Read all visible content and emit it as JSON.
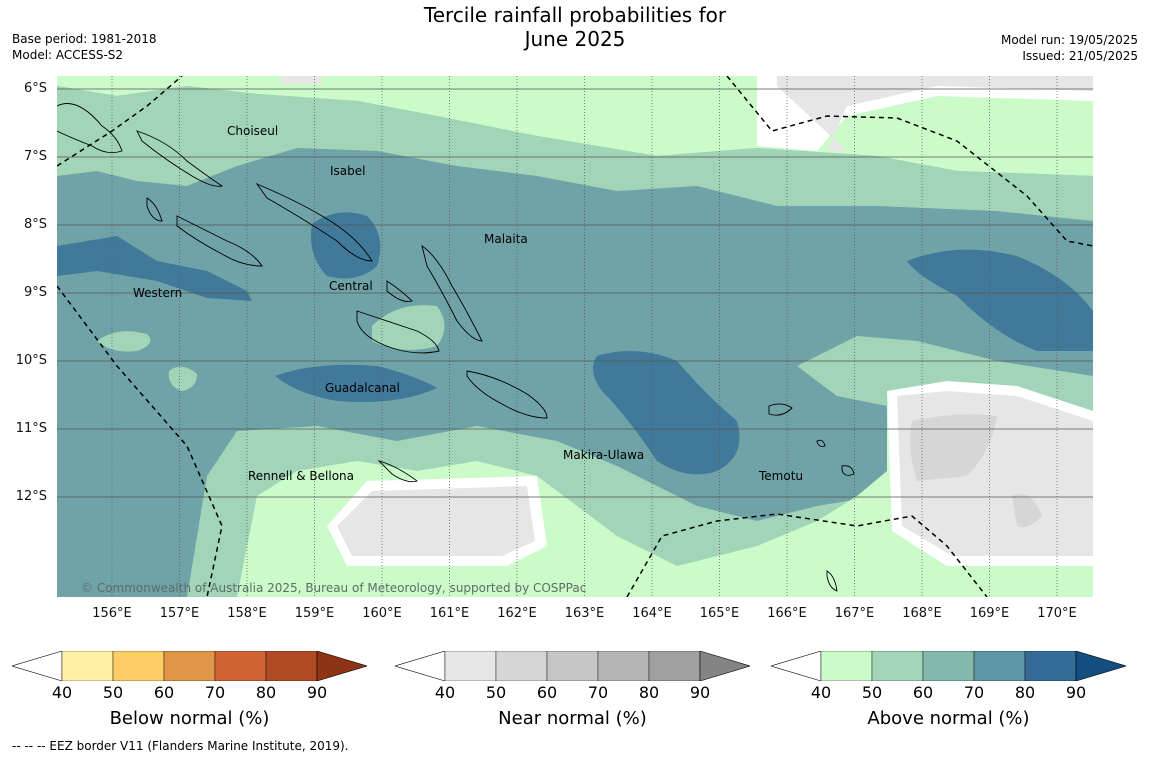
{
  "title_line1": "Tercile rainfall probabilities for",
  "title_line2": "June 2025",
  "base_period": "Base period: 1981-2018",
  "model": "Model: ACCESS-S2",
  "model_run": "Model run: 19/05/2025",
  "issued": "Issued: 21/05/2025",
  "copyright": "© Commonwealth of Australia 2025, Bureau of Meteorology, supported by COSPPac",
  "lat_ticks": [
    "6°S",
    "7°S",
    "8°S",
    "9°S",
    "10°S",
    "11°S",
    "12°S"
  ],
  "lon_ticks": [
    "156°E",
    "157°E",
    "158°E",
    "159°E",
    "160°E",
    "161°E",
    "162°E",
    "163°E",
    "164°E",
    "165°E",
    "166°E",
    "167°E",
    "168°E",
    "169°E",
    "170°E"
  ],
  "provinces": [
    "Choiseul",
    "Isabel",
    "Malaita",
    "Western",
    "Central",
    "Guadalcanal",
    "Makira-Ulawa",
    "Rennell & Bellona",
    "Temotu"
  ],
  "colorbars": [
    {
      "label": "Below normal (%)",
      "ticks": [
        "40",
        "50",
        "60",
        "70",
        "80",
        "90"
      ],
      "colors": [
        "#fff0a3",
        "#ffcd66",
        "#e09548",
        "#cf6434",
        "#b04a25",
        "#8e3414"
      ]
    },
    {
      "label": "Near normal (%)",
      "ticks": [
        "40",
        "50",
        "60",
        "70",
        "80",
        "90"
      ],
      "colors": [
        "#e6e6e6",
        "#d6d6d6",
        "#c6c6c6",
        "#b4b4b4",
        "#a0a0a0",
        "#848484"
      ]
    },
    {
      "label": "Above normal (%)",
      "ticks": [
        "40",
        "50",
        "60",
        "70",
        "80",
        "90"
      ],
      "colors": [
        "#cbfbc9",
        "#a2d5b8",
        "#83b8ad",
        "#5e95a4",
        "#356b97",
        "#124f80"
      ]
    }
  ],
  "footer": "--  --  -- EEZ border V11 (Flanders Marine Institute, 2019)."
}
